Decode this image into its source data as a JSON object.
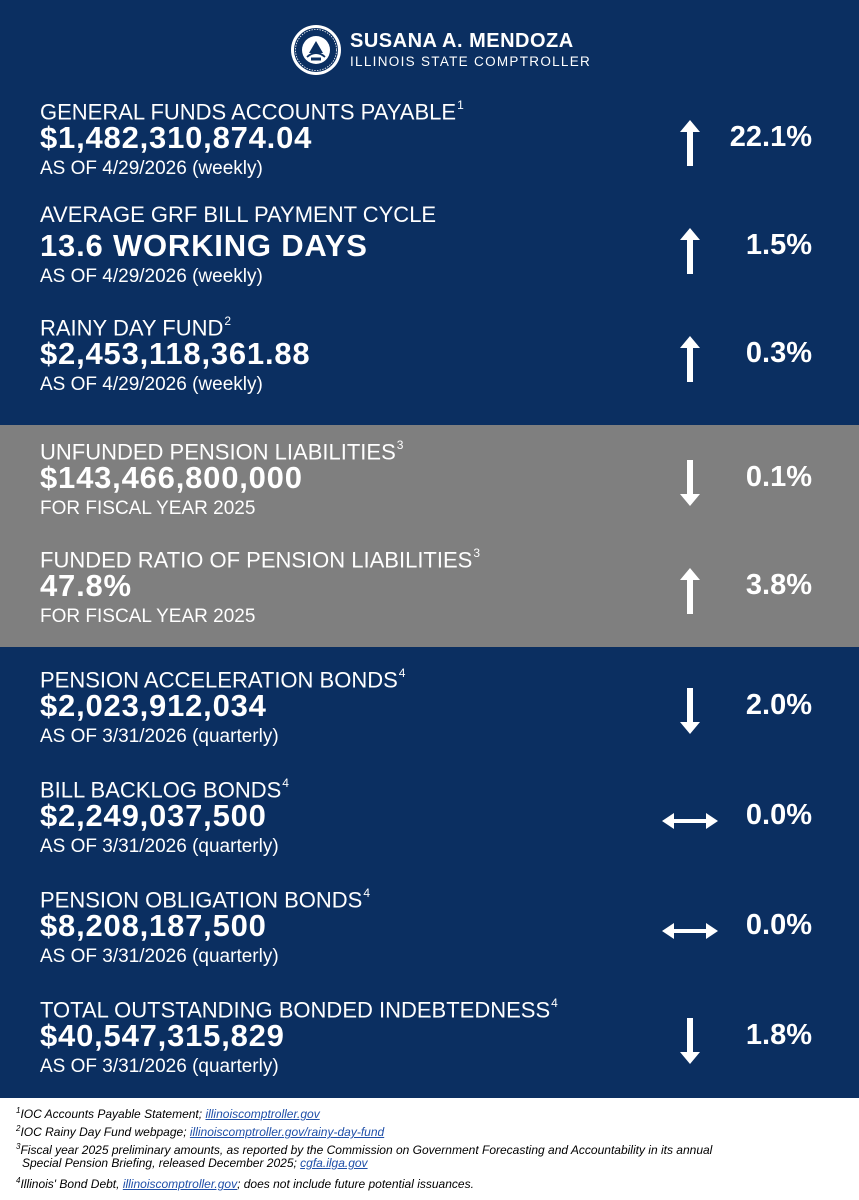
{
  "header": {
    "name": "SUSANA A. MENDOZA",
    "title": "ILLINOIS STATE COMPTROLLER"
  },
  "metrics": [
    {
      "label": "GENERAL FUNDS ACCOUNTS PAYABLE",
      "note": "1",
      "value": "$1,482,310,874.04",
      "subtitle": "AS OF 4/29/2026 (weekly)",
      "direction": "up",
      "change": "22.1%"
    },
    {
      "label": "AVERAGE GRF BILL PAYMENT CYCLE",
      "note": "",
      "value": "13.6 WORKING DAYS",
      "subtitle": "AS OF 4/29/2026 (weekly)",
      "direction": "up",
      "change": "1.5%"
    },
    {
      "label": "RAINY DAY FUND",
      "note": "2",
      "value": "$2,453,118,361.88",
      "subtitle": "AS OF 4/29/2026 (weekly)",
      "direction": "up",
      "change": "0.3%"
    },
    {
      "label": "UNFUNDED PENSION LIABILITIES",
      "note": "3",
      "value": "$143,466,800,000",
      "subtitle": "FOR FISCAL YEAR 2025",
      "direction": "down",
      "change": "0.1%"
    },
    {
      "label": "FUNDED RATIO OF PENSION LIABILITIES",
      "note": "3",
      "value": "47.8%",
      "subtitle": "FOR FISCAL YEAR 2025",
      "direction": "up",
      "change": "3.8%"
    },
    {
      "label": "PENSION ACCELERATION BONDS",
      "note": "4",
      "value": "$2,023,912,034",
      "subtitle": "AS OF 3/31/2026 (quarterly)",
      "direction": "down",
      "change": "2.0%"
    },
    {
      "label": "BILL BACKLOG BONDS",
      "note": "4",
      "value": "$2,249,037,500",
      "subtitle": "AS OF 3/31/2026 (quarterly)",
      "direction": "flat",
      "change": "0.0%"
    },
    {
      "label": "PENSION OBLIGATION BONDS",
      "note": "4",
      "value": "$8,208,187,500",
      "subtitle": "AS OF 3/31/2026 (quarterly)",
      "direction": "flat",
      "change": "0.0%"
    },
    {
      "label": "TOTAL OUTSTANDING BONDED INDEBTEDNESS",
      "note": "4",
      "value": "$40,547,315,829",
      "subtitle": "AS OF 3/31/2026 (quarterly)",
      "direction": "down",
      "change": "1.8%"
    }
  ],
  "footnotes": [
    {
      "num": "1",
      "text": "IOC Accounts Payable Statement; ",
      "link": "illinoiscomptroller.gov",
      "after": ""
    },
    {
      "num": "2",
      "text": "IOC Rainy Day Fund webpage; ",
      "link": "illinoiscomptroller.gov/rainy-day-fund",
      "after": ""
    },
    {
      "num": "3",
      "text": "Fiscal year 2025 preliminary amounts, as reported by the Commission on Government Forecasting and Accountability in its annual",
      "link": "",
      "after": ""
    },
    {
      "num": "",
      "text": "Special Pension Briefing, released December 2025; ",
      "link": "cgfa.ilga.gov",
      "after": ""
    },
    {
      "num": "4",
      "text": "Illinois' Bond Debt, ",
      "link": "illinoiscomptroller.gov",
      "after": "; does not include future potential issuances."
    }
  ],
  "colors": {
    "navy": "#0b2f61",
    "gray": "#7f7f7f",
    "link": "#1f4fa8"
  },
  "icons": {
    "up": "arrow-up-icon",
    "down": "arrow-down-icon",
    "flat": "arrow-left-right-icon"
  }
}
